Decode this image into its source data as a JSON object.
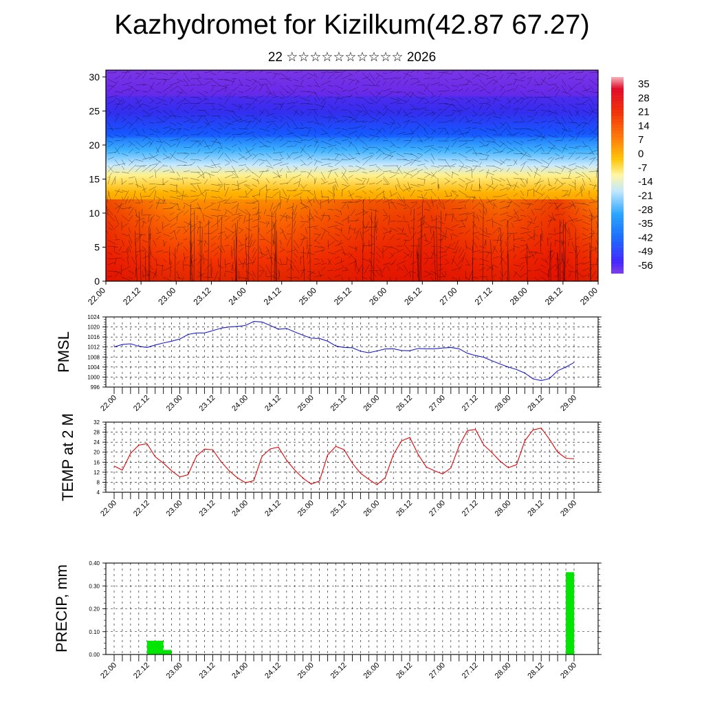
{
  "title": "Kazhydromet for Kizilkum(42.87 67.27)",
  "subtitle": "22 ☆☆☆☆☆☆☆☆☆☆ 2026",
  "chart_data": [
    {
      "type": "heatmap",
      "title": "",
      "ylabel": "",
      "ylim": [
        0,
        31
      ],
      "y_ticks": [
        "0",
        "5",
        "10",
        "15",
        "20",
        "25",
        "30"
      ],
      "x_ticks": [
        "22.00",
        "22.12",
        "23.00",
        "23.12",
        "24.00",
        "24.12",
        "25.00",
        "25.12",
        "26.00",
        "26.12",
        "27.00",
        "27.12",
        "28.00",
        "28.12",
        "29.00"
      ],
      "colorbar_labels": [
        "35",
        "28",
        "21",
        "14",
        "7",
        "0",
        "-7",
        "-14",
        "-21",
        "-28",
        "-35",
        "-42",
        "-49",
        "-56"
      ],
      "colorbar_range": [
        -60,
        38
      ],
      "wind_vectors": true
    },
    {
      "type": "line",
      "ylabel": "PMSL",
      "ylim": [
        996,
        1024
      ],
      "y_ticks": [
        "996",
        "1000",
        "1004",
        "1008",
        "1012",
        "1016",
        "1020",
        "1024"
      ],
      "x_ticks": [
        "22.00",
        "22.12",
        "23.00",
        "23.12",
        "24.00",
        "24.12",
        "25.00",
        "25.12",
        "26.00",
        "26.12",
        "27.00",
        "27.12",
        "28.00",
        "28.12",
        "29.00"
      ],
      "color": "#1c1cd6",
      "x": [
        0,
        3,
        6,
        9,
        12,
        15,
        18,
        21,
        24,
        27,
        30,
        33,
        36,
        39,
        42,
        45,
        48,
        51,
        54,
        57,
        60,
        63,
        66,
        69,
        72,
        75,
        78,
        81,
        84,
        87,
        90,
        93,
        96,
        99,
        102,
        105,
        108,
        111,
        114,
        117,
        120,
        123,
        126,
        129,
        132,
        135,
        138,
        141,
        144,
        147,
        150,
        153,
        156,
        159,
        162,
        165,
        168
      ],
      "values": [
        1012,
        1013,
        1013.3,
        1012.3,
        1011.8,
        1012.8,
        1013.6,
        1014.3,
        1015.2,
        1017,
        1017.6,
        1017.6,
        1018.5,
        1019.5,
        1020,
        1020.2,
        1020.6,
        1022.2,
        1022,
        1020.6,
        1019.1,
        1019.4,
        1018,
        1016.7,
        1015.5,
        1015.4,
        1014.3,
        1012.4,
        1011.8,
        1011.7,
        1010.3,
        1009.7,
        1010.4,
        1011.2,
        1011.3,
        1010.6,
        1010.5,
        1011.4,
        1011.3,
        1011.3,
        1011.6,
        1011.8,
        1011.3,
        1009.5,
        1008.6,
        1007.9,
        1006.5,
        1005.2,
        1004,
        1003,
        1001.6,
        999.3,
        998.6,
        999.4,
        1002.5,
        1004,
        1005.8
      ]
    },
    {
      "type": "line",
      "ylabel": "TEMP at 2 M",
      "ylim": [
        4,
        32
      ],
      "y_ticks": [
        "4",
        "8",
        "12",
        "16",
        "20",
        "24",
        "28",
        "32"
      ],
      "x_ticks": [
        "22.00",
        "22.12",
        "23.00",
        "23.12",
        "24.00",
        "24.12",
        "25.00",
        "25.12",
        "26.00",
        "26.12",
        "27.00",
        "27.12",
        "28.00",
        "28.12",
        "29.00"
      ],
      "color": "#e60000",
      "x": [
        0,
        3,
        6,
        9,
        12,
        15,
        18,
        21,
        24,
        27,
        30,
        33,
        36,
        39,
        42,
        45,
        48,
        51,
        54,
        57,
        60,
        63,
        66,
        69,
        72,
        75,
        78,
        81,
        84,
        87,
        90,
        93,
        96,
        99,
        102,
        105,
        108,
        111,
        114,
        117,
        120,
        123,
        126,
        129,
        132,
        135,
        138,
        141,
        144,
        147,
        150,
        153,
        156,
        159,
        162,
        165,
        168
      ],
      "values": [
        14.5,
        12.8,
        19.5,
        22.8,
        23.4,
        18.2,
        15.6,
        12.6,
        10.1,
        11,
        18.3,
        21.2,
        21,
        16.3,
        12.6,
        9.8,
        7.8,
        8.6,
        18.3,
        21.3,
        22,
        16.8,
        12.8,
        9.6,
        7.2,
        8.5,
        18.9,
        22.3,
        21,
        15.6,
        11.6,
        9.2,
        7,
        9.8,
        19,
        24.5,
        25.9,
        19.2,
        14.1,
        12.6,
        11.3,
        13.7,
        22.5,
        28.6,
        29.1,
        22.9,
        19.8,
        16.4,
        13.8,
        15,
        24.5,
        28.9,
        29.6,
        25.2,
        20,
        17.6,
        17.3
      ]
    },
    {
      "type": "bar",
      "ylabel": "PRECIP, mm",
      "ylim": [
        0,
        0.4
      ],
      "y_ticks": [
        "0.00",
        "0.10",
        "0.20",
        "0.30",
        "0.40"
      ],
      "x_ticks": [
        "22.00",
        "22.12",
        "23.00",
        "23.12",
        "24.00",
        "24.12",
        "25.00",
        "25.12",
        "26.00",
        "26.12",
        "27.00",
        "27.12",
        "28.00",
        "28.12",
        "29.00"
      ],
      "color": "#00e600",
      "bars": [
        {
          "x_start": 12,
          "x_end": 18,
          "value": 0.06
        },
        {
          "x_start": 18,
          "x_end": 21,
          "value": 0.02
        },
        {
          "x_start": 165,
          "x_end": 168,
          "value": 0.36
        }
      ]
    }
  ]
}
